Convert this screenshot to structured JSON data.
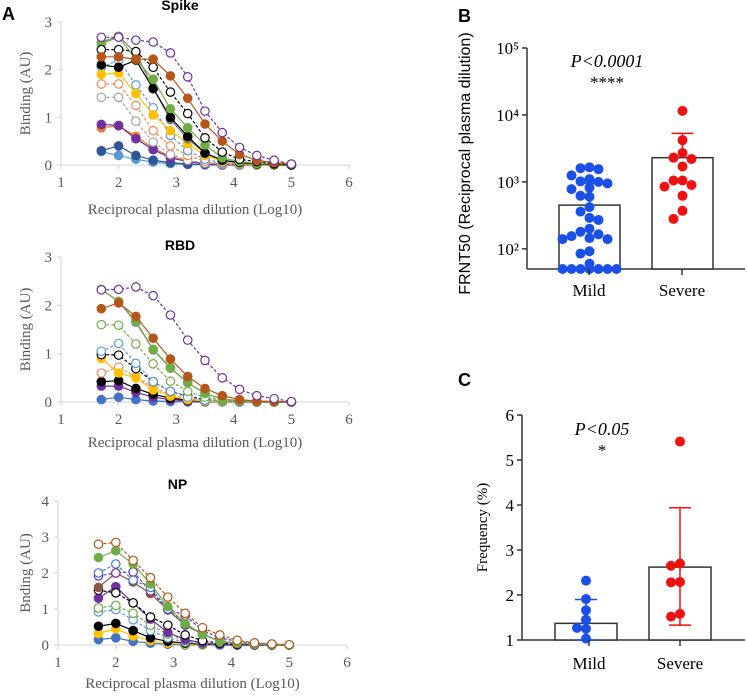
{
  "panel_labels": {
    "a": "A",
    "b": "B",
    "c": "C"
  },
  "chart_data": [
    {
      "type": "line",
      "title": "Spike",
      "xlabel": "Reciprocal plasma dilution (Log10)",
      "ylabel": "Binding (AU)",
      "xlim": [
        1,
        6
      ],
      "ylim": [
        0,
        3
      ],
      "xticks": [
        1,
        2,
        3,
        4,
        5,
        6
      ],
      "yticks": [
        0,
        1,
        2,
        3
      ],
      "x": [
        1.7,
        2.0,
        2.3,
        2.6,
        2.9,
        3.2,
        3.5,
        3.8,
        4.1,
        4.4,
        4.7,
        5.0
      ],
      "series": [
        {
          "color": "#7030a0",
          "marker": "open",
          "dashed": true,
          "y": [
            2.68,
            2.68,
            2.62,
            2.58,
            2.35,
            1.85,
            1.13,
            0.68,
            0.37,
            0.2,
            0.1,
            0.02
          ]
        },
        {
          "color": "#b5561b",
          "marker": "filled",
          "dashed": false,
          "y": [
            2.27,
            2.27,
            2.22,
            2.22,
            1.87,
            1.4,
            0.86,
            0.5,
            0.22,
            0.1,
            0.05,
            0.02
          ]
        },
        {
          "color": "#000000",
          "marker": "open",
          "dashed": true,
          "y": [
            2.42,
            2.42,
            2.38,
            2.05,
            1.53,
            1.08,
            0.57,
            0.27,
            0.12,
            0.07,
            0.03,
            0.01
          ]
        },
        {
          "color": "#70ad47",
          "marker": "filled",
          "dashed": false,
          "y": [
            2.55,
            2.68,
            2.22,
            1.8,
            1.18,
            0.78,
            0.42,
            0.15,
            0.07,
            0.03,
            0.02,
            0.01
          ]
        },
        {
          "color": "#000000",
          "marker": "filled",
          "dashed": false,
          "y": [
            2.1,
            2.05,
            2.2,
            1.6,
            1.0,
            0.6,
            0.25,
            0.1,
            0.05,
            0.02,
            0.01,
            0
          ]
        },
        {
          "color": "#7f7f7f",
          "marker": "filled",
          "dashed": false,
          "y": [
            2.58,
            2.7,
            2.35,
            1.62,
            0.95,
            0.55,
            0.25,
            0.1,
            0.05,
            0.02,
            0.01,
            0
          ]
        },
        {
          "color": "#ffc000",
          "marker": "filled",
          "dashed": false,
          "y": [
            1.9,
            1.93,
            1.5,
            1.05,
            0.72,
            0.45,
            0.2,
            0.08,
            0.03,
            0.01,
            0,
            0
          ]
        },
        {
          "color": "#5b9bd5",
          "marker": "open",
          "dashed": true,
          "y": [
            2.05,
            2.2,
            1.68,
            1.2,
            0.62,
            0.3,
            0.12,
            0.05,
            0.02,
            0.01,
            0,
            0
          ]
        },
        {
          "color": "#f08a5d",
          "marker": "open",
          "dashed": true,
          "y": [
            1.7,
            1.7,
            1.25,
            0.72,
            0.4,
            0.2,
            0.08,
            0.03,
            0.01,
            0,
            0,
            0
          ]
        },
        {
          "color": "#a5a5a5",
          "marker": "open",
          "dashed": true,
          "y": [
            1.42,
            1.42,
            0.92,
            0.48,
            0.22,
            0.1,
            0.04,
            0.02,
            0.01,
            0,
            0,
            0
          ]
        },
        {
          "color": "#7030a0",
          "marker": "filled",
          "dashed": false,
          "y": [
            0.85,
            0.83,
            0.55,
            0.32,
            0.15,
            0.07,
            0.03,
            0.01,
            0,
            0,
            0,
            0
          ]
        },
        {
          "color": "#ed7d31",
          "marker": "filled",
          "dashed": false,
          "y": [
            0.78,
            0.82,
            0.6,
            0.35,
            0.18,
            0.08,
            0.03,
            0.01,
            0,
            0,
            0,
            0
          ]
        },
        {
          "color": "#2f5597",
          "marker": "filled",
          "dashed": false,
          "y": [
            0.3,
            0.4,
            0.2,
            0.1,
            0.05,
            0.02,
            0.01,
            0,
            0,
            0,
            0,
            0
          ]
        },
        {
          "color": "#5b9bd5",
          "marker": "filled",
          "dashed": false,
          "y": [
            0.28,
            0.2,
            0.12,
            0.06,
            0.03,
            0.01,
            0,
            0,
            0,
            0,
            0,
            0
          ]
        }
      ]
    },
    {
      "type": "line",
      "title": "RBD",
      "xlabel": "Reciprocal plasma dilution (Log10)",
      "ylabel": "Binding (AU)",
      "xlim": [
        1,
        6
      ],
      "ylim": [
        0,
        3
      ],
      "xticks": [
        1,
        2,
        3,
        4,
        5,
        6
      ],
      "yticks": [
        0,
        1,
        2,
        3
      ],
      "x": [
        1.7,
        2.0,
        2.3,
        2.6,
        2.9,
        3.2,
        3.5,
        3.8,
        4.1,
        4.4,
        4.7,
        5.0
      ],
      "series": [
        {
          "color": "#7030a0",
          "marker": "open",
          "dashed": true,
          "y": [
            2.32,
            2.33,
            2.38,
            2.2,
            1.8,
            1.28,
            0.86,
            0.5,
            0.26,
            0.13,
            0.07,
            0.01
          ]
        },
        {
          "color": "#b5561b",
          "marker": "filled",
          "dashed": false,
          "y": [
            1.93,
            2.05,
            1.77,
            1.32,
            0.89,
            0.53,
            0.28,
            0.13,
            0.05,
            0.02,
            0.01,
            0
          ]
        },
        {
          "color": "#70ad47",
          "marker": "filled",
          "dashed": false,
          "y": [
            2.33,
            2.08,
            1.67,
            1.09,
            0.71,
            0.4,
            0.18,
            0.06,
            0.03,
            0.01,
            0,
            0
          ]
        },
        {
          "color": "#7f7f7f",
          "marker": "filled",
          "dashed": false,
          "y": [
            2.33,
            2.08,
            1.65,
            1.08,
            0.7,
            0.4,
            0.18,
            0.06,
            0.02,
            0.01,
            0,
            0
          ]
        },
        {
          "color": "#70ad47",
          "marker": "open",
          "dashed": true,
          "y": [
            1.6,
            1.59,
            1.2,
            0.79,
            0.43,
            0.22,
            0.1,
            0.04,
            0.02,
            0,
            0,
            0
          ]
        },
        {
          "color": "#5b9bd5",
          "marker": "open",
          "dashed": true,
          "y": [
            1.05,
            1.21,
            0.8,
            0.42,
            0.22,
            0.1,
            0.04,
            0.02,
            0,
            0,
            0,
            0
          ]
        },
        {
          "color": "#000000",
          "marker": "open",
          "dashed": true,
          "y": [
            0.98,
            0.97,
            0.69,
            0.42,
            0.22,
            0.12,
            0.05,
            0.02,
            0.01,
            0,
            0,
            0
          ]
        },
        {
          "color": "#ffc000",
          "marker": "filled",
          "dashed": false,
          "y": [
            0.9,
            0.6,
            0.5,
            0.25,
            0.12,
            0.05,
            0.02,
            0,
            0,
            0,
            0,
            0
          ]
        },
        {
          "color": "#f08a5d",
          "marker": "open",
          "dashed": true,
          "y": [
            0.6,
            0.72,
            0.52,
            0.3,
            0.15,
            0.07,
            0.03,
            0.01,
            0,
            0,
            0,
            0
          ]
        },
        {
          "color": "#000000",
          "marker": "filled",
          "dashed": false,
          "y": [
            0.42,
            0.44,
            0.28,
            0.16,
            0.08,
            0.04,
            0.02,
            0,
            0,
            0,
            0,
            0
          ]
        },
        {
          "color": "#7030a0",
          "marker": "filled",
          "dashed": false,
          "y": [
            0.33,
            0.33,
            0.2,
            0.1,
            0.05,
            0.02,
            0.01,
            0,
            0,
            0,
            0,
            0
          ]
        },
        {
          "color": "#4472c4",
          "marker": "filled",
          "dashed": false,
          "y": [
            0.05,
            0.1,
            0.05,
            0.02,
            0.01,
            0,
            0,
            0,
            0,
            0,
            0,
            0
          ]
        }
      ]
    },
    {
      "type": "line",
      "title": "NP",
      "xlabel": "Reciprocal plasma dilution (Log10)",
      "ylabel": "Bnding (AU)",
      "xlim": [
        1,
        6
      ],
      "ylim": [
        0,
        4
      ],
      "xticks": [
        1,
        2,
        3,
        4,
        5,
        6
      ],
      "yticks": [
        0,
        1,
        2,
        3,
        4
      ],
      "x": [
        1.7,
        2.0,
        2.3,
        2.6,
        2.9,
        3.2,
        3.5,
        3.8,
        4.1,
        4.4,
        4.7,
        5.0
      ],
      "series": [
        {
          "color": "#b5561b",
          "marker": "open",
          "dashed": true,
          "y": [
            2.8,
            2.85,
            2.35,
            1.87,
            1.33,
            0.88,
            0.48,
            0.28,
            0.13,
            0.06,
            0.03,
            0.01
          ]
        },
        {
          "color": "#70ad47",
          "marker": "filled",
          "dashed": false,
          "y": [
            2.43,
            2.62,
            2.25,
            1.7,
            1.07,
            0.6,
            0.3,
            0.1,
            0.05,
            0.02,
            0.01,
            0
          ]
        },
        {
          "color": "#4472c4",
          "marker": "open",
          "dashed": true,
          "y": [
            2.0,
            2.25,
            1.8,
            1.6,
            1.0,
            0.58,
            0.3,
            0.12,
            0.05,
            0.02,
            0.01,
            0
          ]
        },
        {
          "color": "#7030a0",
          "marker": "open",
          "dashed": true,
          "y": [
            1.92,
            2.0,
            2.03,
            1.5,
            1.0,
            0.82,
            0.4,
            0.2,
            0.1,
            0.05,
            0.02,
            0
          ]
        },
        {
          "color": "#8c564b",
          "marker": "filled",
          "dashed": false,
          "y": [
            1.6,
            2.0,
            1.75,
            1.43,
            0.97,
            0.55,
            0.3,
            0.1,
            0.04,
            0.02,
            0.01,
            0
          ]
        },
        {
          "color": "#000000",
          "marker": "open",
          "dashed": true,
          "y": [
            1.52,
            1.45,
            1.17,
            0.78,
            0.55,
            0.28,
            0.12,
            0.05,
            0.02,
            0.01,
            0,
            0
          ]
        },
        {
          "color": "#7030a0",
          "marker": "filled",
          "dashed": false,
          "y": [
            1.3,
            1.62,
            1.17,
            0.72,
            0.35,
            0.15,
            0.06,
            0.02,
            0,
            0,
            0,
            0
          ]
        },
        {
          "color": "#70ad47",
          "marker": "open",
          "dashed": true,
          "y": [
            1.03,
            1.1,
            0.88,
            0.55,
            0.3,
            0.13,
            0.05,
            0.02,
            0,
            0,
            0,
            0
          ]
        },
        {
          "color": "#5b9bd5",
          "marker": "open",
          "dashed": true,
          "y": [
            0.92,
            0.98,
            0.7,
            0.4,
            0.2,
            0.08,
            0.03,
            0,
            0,
            0,
            0,
            0
          ]
        },
        {
          "color": "#000000",
          "marker": "filled",
          "dashed": false,
          "y": [
            0.52,
            0.6,
            0.4,
            0.2,
            0.1,
            0.05,
            0.02,
            0,
            0,
            0,
            0,
            0
          ]
        },
        {
          "color": "#ffc000",
          "marker": "filled",
          "dashed": false,
          "y": [
            0.32,
            0.45,
            0.25,
            0.12,
            0.05,
            0.02,
            0,
            0,
            0,
            0,
            0,
            0
          ]
        },
        {
          "color": "#4472c4",
          "marker": "filled",
          "dashed": false,
          "y": [
            0.15,
            0.2,
            0.1,
            0.05,
            0.02,
            0,
            0,
            0,
            0,
            0,
            0,
            0
          ]
        }
      ]
    },
    {
      "type": "bar",
      "ylabel": "FRNT50 (Reciprocal plasma dilution)",
      "yscale": "log",
      "ylim": [
        50,
        100000
      ],
      "yticks": [
        100,
        1000,
        10000,
        100000
      ],
      "ytick_labels": [
        "10²",
        "10³",
        "10⁴",
        "10⁵"
      ],
      "categories": [
        "Mild",
        "Severe"
      ],
      "colors": [
        "#1a4fe8",
        "#ee1111"
      ],
      "means": [
        450,
        2300
      ],
      "sd_upper": [
        950,
        5300
      ],
      "points": [
        [
          1600,
          1650,
          1550,
          1250,
          1100,
          1020,
          1000,
          950,
          820,
          780,
          620,
          600,
          420,
          360,
          290,
          270,
          200,
          165,
          155,
          145,
          140,
          140,
          180,
          92,
          85,
          60,
          50,
          50,
          50,
          50,
          50,
          50,
          50
        ],
        [
          11500,
          4200,
          2700,
          2300,
          2200,
          1700,
          1050,
          1050,
          900,
          850,
          620,
          370,
          280
        ]
      ],
      "annotation": {
        "p": "P<0.0001",
        "stars": "****"
      }
    },
    {
      "type": "bar",
      "ylabel": "Frequency (%)",
      "ylim": [
        1,
        6
      ],
      "yticks": [
        1,
        2,
        3,
        4,
        5,
        6
      ],
      "categories": [
        "Mild",
        "Severe"
      ],
      "colors": [
        "#1a4fe8",
        "#ee1111"
      ],
      "means": [
        1.37,
        2.62
      ],
      "sd_lower": [
        1.0,
        1.33
      ],
      "sd_upper": [
        1.9,
        3.94
      ],
      "points": [
        [
          2.32,
          1.91,
          1.66,
          1.45,
          1.27,
          1.25,
          1.03
        ],
        [
          5.41,
          2.7,
          2.65,
          2.29,
          2.28,
          1.58,
          1.52
        ]
      ],
      "annotation": {
        "p": "P<0.05",
        "stars": "*"
      }
    }
  ]
}
